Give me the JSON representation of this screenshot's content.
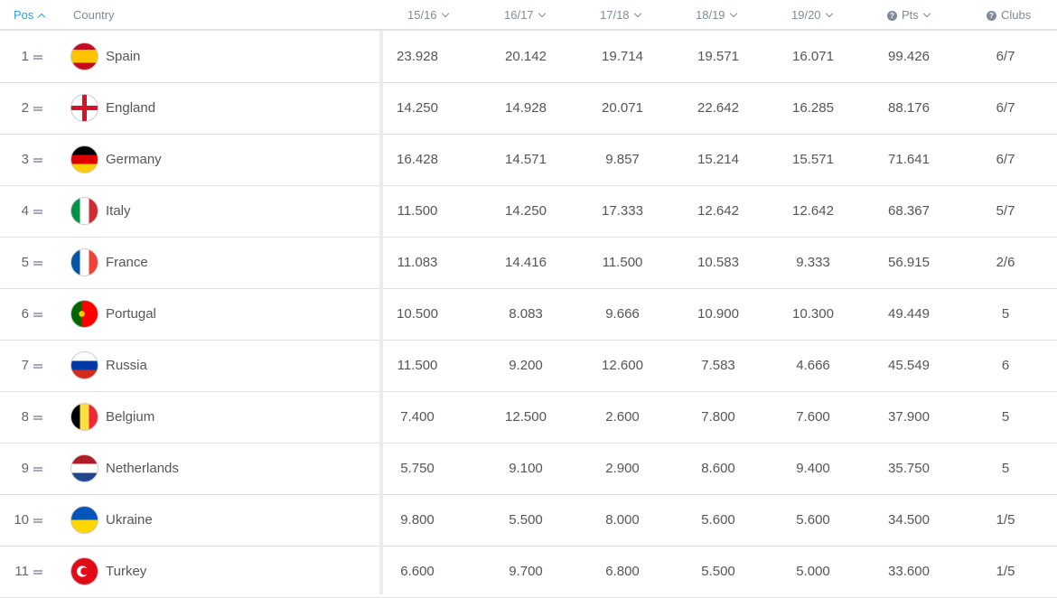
{
  "header": {
    "pos": "Pos",
    "country": "Country",
    "seasons": [
      "15/16",
      "16/17",
      "17/18",
      "18/19",
      "19/20"
    ],
    "pts": "Pts",
    "clubs": "Clubs"
  },
  "accent": "#2aa0df",
  "rows": [
    {
      "pos": "1",
      "country": "Spain",
      "values": [
        "23.928",
        "20.142",
        "19.714",
        "19.571",
        "16.071"
      ],
      "pts": "99.426",
      "clubs": "6/7"
    },
    {
      "pos": "2",
      "country": "England",
      "values": [
        "14.250",
        "14.928",
        "20.071",
        "22.642",
        "16.285"
      ],
      "pts": "88.176",
      "clubs": "6/7"
    },
    {
      "pos": "3",
      "country": "Germany",
      "values": [
        "16.428",
        "14.571",
        "9.857",
        "15.214",
        "15.571"
      ],
      "pts": "71.641",
      "clubs": "6/7"
    },
    {
      "pos": "4",
      "country": "Italy",
      "values": [
        "11.500",
        "14.250",
        "17.333",
        "12.642",
        "12.642"
      ],
      "pts": "68.367",
      "clubs": "5/7"
    },
    {
      "pos": "5",
      "country": "France",
      "values": [
        "11.083",
        "14.416",
        "11.500",
        "10.583",
        "9.333"
      ],
      "pts": "56.915",
      "clubs": "2/6"
    },
    {
      "pos": "6",
      "country": "Portugal",
      "values": [
        "10.500",
        "8.083",
        "9.666",
        "10.900",
        "10.300"
      ],
      "pts": "49.449",
      "clubs": "5"
    },
    {
      "pos": "7",
      "country": "Russia",
      "values": [
        "11.500",
        "9.200",
        "12.600",
        "7.583",
        "4.666"
      ],
      "pts": "45.549",
      "clubs": "6"
    },
    {
      "pos": "8",
      "country": "Belgium",
      "values": [
        "7.400",
        "12.500",
        "2.600",
        "7.800",
        "7.600"
      ],
      "pts": "37.900",
      "clubs": "5"
    },
    {
      "pos": "9",
      "country": "Netherlands",
      "values": [
        "5.750",
        "9.100",
        "2.900",
        "8.600",
        "9.400"
      ],
      "pts": "35.750",
      "clubs": "5"
    },
    {
      "pos": "10",
      "country": "Ukraine",
      "values": [
        "9.800",
        "5.500",
        "8.000",
        "5.600",
        "5.600"
      ],
      "pts": "34.500",
      "clubs": "1/5"
    },
    {
      "pos": "11",
      "country": "Turkey",
      "values": [
        "6.600",
        "9.700",
        "6.800",
        "5.500",
        "5.000"
      ],
      "pts": "33.600",
      "clubs": "1/5"
    }
  ]
}
